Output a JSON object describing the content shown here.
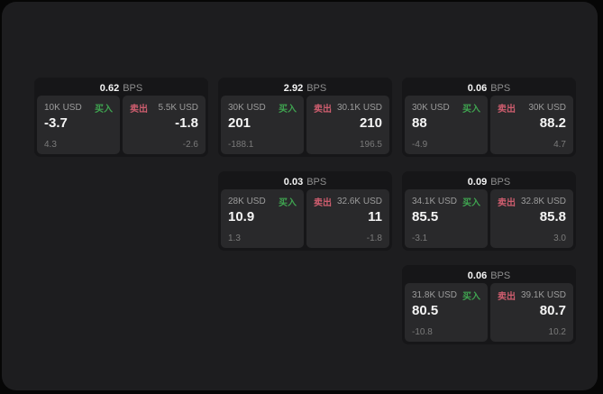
{
  "labels": {
    "buy": "买入",
    "sell": "卖出",
    "bps_suffix": "BPS"
  },
  "colors": {
    "page_bg": "#060606",
    "panel_bg": "#1d1d1f",
    "card_bg": "#161618",
    "tile_bg": "#29292b",
    "buy_green": "#3fa350",
    "sell_red": "#cd5d6e",
    "value_white": "#f5f5f5",
    "label_gray": "#9c9c9c",
    "delta_gray": "#7a7a7a"
  },
  "cards": [
    {
      "bps": "0.62",
      "buy": {
        "notional": "10K USD",
        "price": "-3.7",
        "delta": "4.3"
      },
      "sell": {
        "notional": "5.5K USD",
        "price": "-1.8",
        "delta": "-2.6"
      }
    },
    {
      "bps": "2.92",
      "buy": {
        "notional": "30K USD",
        "price": "201",
        "delta": "-188.1"
      },
      "sell": {
        "notional": "30.1K USD",
        "price": "210",
        "delta": "196.5"
      }
    },
    {
      "bps": "0.06",
      "buy": {
        "notional": "30K USD",
        "price": "88",
        "delta": "-4.9"
      },
      "sell": {
        "notional": "30K USD",
        "price": "88.2",
        "delta": "4.7"
      }
    },
    {
      "bps": "0.03",
      "buy": {
        "notional": "28K USD",
        "price": "10.9",
        "delta": "1.3"
      },
      "sell": {
        "notional": "32.6K USD",
        "price": "11",
        "delta": "-1.8"
      }
    },
    {
      "bps": "0.09",
      "buy": {
        "notional": "34.1K USD",
        "price": "85.5",
        "delta": "-3.1"
      },
      "sell": {
        "notional": "32.8K USD",
        "price": "85.8",
        "delta": "3.0"
      }
    },
    {
      "bps": "0.06",
      "buy": {
        "notional": "31.8K USD",
        "price": "80.5",
        "delta": "-10.8"
      },
      "sell": {
        "notional": "39.1K USD",
        "price": "80.7",
        "delta": "10.2"
      }
    }
  ]
}
